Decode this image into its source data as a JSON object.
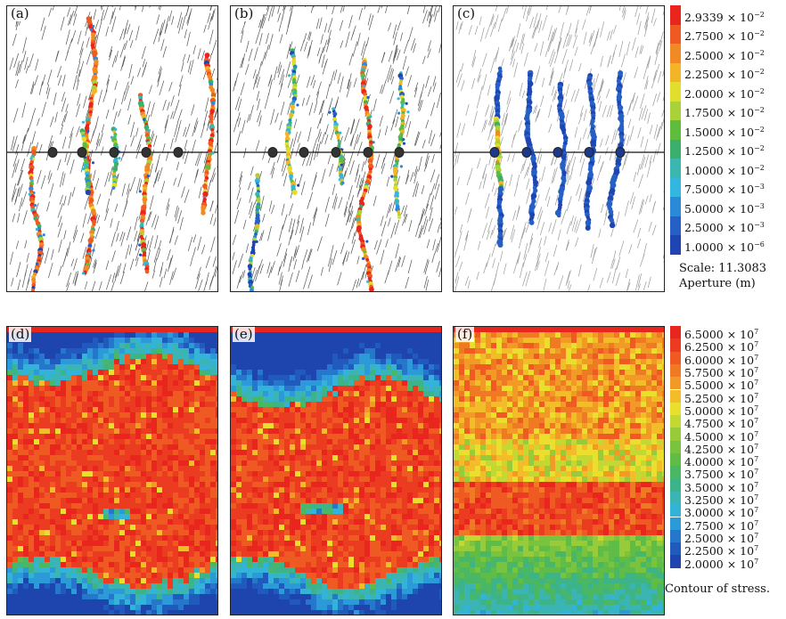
{
  "panels": {
    "a": {
      "label": "(a)"
    },
    "b": {
      "label": "(b)"
    },
    "c": {
      "label": "(c)"
    },
    "d": {
      "label": "(d)"
    },
    "e": {
      "label": "(e)"
    },
    "f": {
      "label": "(f)"
    }
  },
  "aperture_legend": {
    "ticks": [
      {
        "mant": "2.9339",
        "exp": "−2"
      },
      {
        "mant": "2.7500",
        "exp": "−2"
      },
      {
        "mant": "2.5000",
        "exp": "−2"
      },
      {
        "mant": "2.2500",
        "exp": "−2"
      },
      {
        "mant": "2.0000",
        "exp": "−2"
      },
      {
        "mant": "1.7500",
        "exp": "−2"
      },
      {
        "mant": "1.5000",
        "exp": "−2"
      },
      {
        "mant": "1.2500",
        "exp": "−2"
      },
      {
        "mant": "1.0000",
        "exp": "−2"
      },
      {
        "mant": "7.5000",
        "exp": "−3"
      },
      {
        "mant": "5.0000",
        "exp": "−3"
      },
      {
        "mant": "2.5000",
        "exp": "−3"
      },
      {
        "mant": "1.0000",
        "exp": "−6"
      }
    ],
    "colors": [
      "#e8261d",
      "#ee5a22",
      "#f28a24",
      "#f3b428",
      "#e2de2c",
      "#a9d238",
      "#5ebd3c",
      "#3caf6c",
      "#3ab7b0",
      "#33b6e0",
      "#2a8ad8",
      "#2560c6",
      "#1f45b2"
    ],
    "scale_text": "Scale: 11.3083",
    "unit_text": "Aperture (m)"
  },
  "stress_legend": {
    "ticks": [
      "6.5000",
      "6.2500",
      "6.0000",
      "5.7500",
      "5.5000",
      "5.2500",
      "5.0000",
      "4.7500",
      "4.5000",
      "4.2500",
      "4.0000",
      "3.7500",
      "3.5000",
      "3.2500",
      "3.0000",
      "2.7500",
      "2.5000",
      "2.2500",
      "2.0000"
    ],
    "exp": "7",
    "colors": [
      "#e8261d",
      "#eb3b20",
      "#ee5a22",
      "#f07a24",
      "#f29a26",
      "#f3bc29",
      "#eadf2d",
      "#c3d833",
      "#98cb39",
      "#7ac33e",
      "#5fbd47",
      "#49b764",
      "#3db38a",
      "#3ab5b3",
      "#34b3d8",
      "#2c9ad9",
      "#2577cc",
      "#215abd",
      "#1e44ae"
    ],
    "title": "Contour of stress."
  }
}
